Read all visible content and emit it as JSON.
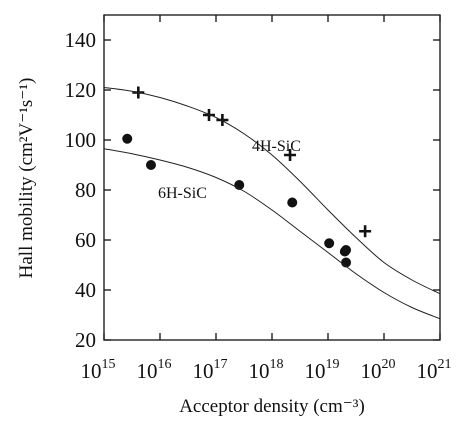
{
  "chart_data": {
    "type": "scatter",
    "x_label": "Acceptor density (cm⁻³)",
    "y_label": "Hall mobility (cm²V⁻¹s⁻¹)",
    "x_scale": "log",
    "xlim": [
      1000000000000000.0,
      1e+21
    ],
    "xticks": [
      {
        "value": 1000000000000000.0,
        "label": "10",
        "exponent": "15"
      },
      {
        "value": 1e+16,
        "label": "10",
        "exponent": "16"
      },
      {
        "value": 1e+17,
        "label": "10",
        "exponent": "17"
      },
      {
        "value": 1e+18,
        "label": "10",
        "exponent": "18"
      },
      {
        "value": 1e+19,
        "label": "10",
        "exponent": "19"
      },
      {
        "value": 1e+20,
        "label": "10",
        "exponent": "20"
      },
      {
        "value": 1e+21,
        "label": "10",
        "exponent": "21"
      }
    ],
    "ylim": [
      20,
      150
    ],
    "yticks": [
      20,
      40,
      60,
      80,
      100,
      120,
      140
    ],
    "grid": false,
    "series": [
      {
        "name": "4H-SiC",
        "color": "#111111",
        "marker": "plus",
        "x": [
          4100000000000000.0,
          7.5e+16,
          1.3e+17,
          2.1e+18,
          4.6e+19
        ],
        "values": [
          119,
          110,
          108,
          94,
          63.5
        ]
      },
      {
        "name": "6H-SiC",
        "color": "#111111",
        "marker": "circle",
        "x": [
          2600000000000000.0,
          6900000000000000.0,
          2.6e+17,
          2.3e+18,
          1.05e+19,
          2e+19,
          2.1e+19,
          2.1e+19
        ],
        "values": [
          100.5,
          90,
          82,
          75,
          58.7,
          55.4,
          56,
          51
        ]
      },
      {
        "color": "#222222",
        "marker": "line",
        "x": [
          1000000000000000.0,
          3160000000000000.0,
          1e+16,
          3.16e+16,
          1e+17,
          3.16e+17,
          1e+18,
          3.16e+18,
          1e+19,
          3.16e+19,
          1e+20,
          3.16e+20,
          1e+21
        ],
        "values": [
          121,
          119.5,
          117,
          113.5,
          109,
          102.5,
          94,
          83.5,
          72,
          61,
          51,
          44,
          38.5
        ]
      },
      {
        "color": "#222222",
        "marker": "line",
        "x": [
          1000000000000000.0,
          3160000000000000.0,
          1e+16,
          3.16e+16,
          1e+17,
          3.16e+17,
          1e+18,
          3.16e+18,
          1e+19,
          3.16e+19,
          1e+20,
          3.16e+20,
          1e+21
        ],
        "values": [
          96.5,
          94.5,
          92,
          89,
          85,
          79.5,
          72,
          63.5,
          55,
          46.5,
          39,
          33,
          28.5
        ]
      }
    ]
  }
}
